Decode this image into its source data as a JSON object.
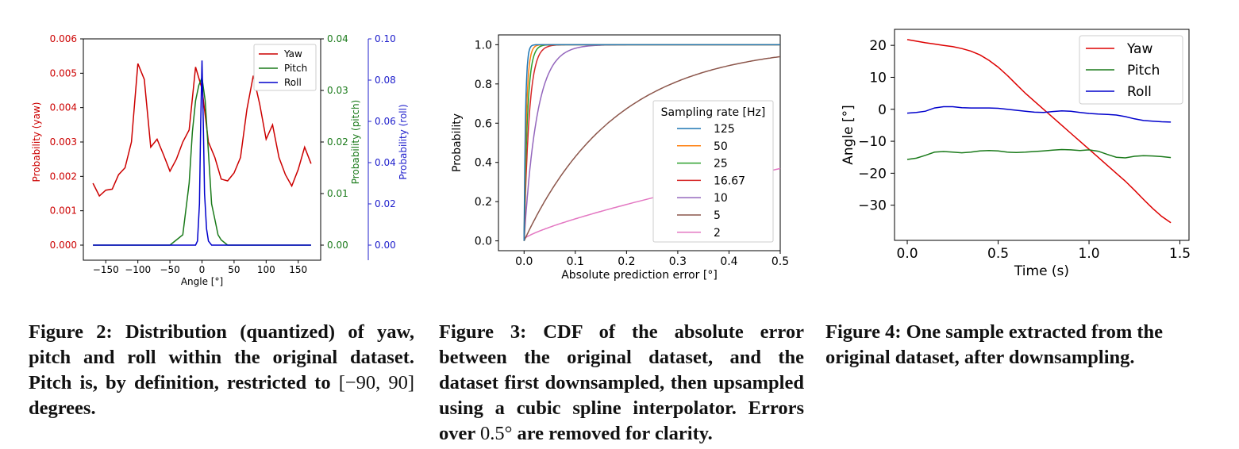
{
  "chart_data": [
    {
      "type": "line",
      "id": "fig2",
      "xlabel": "Angle [°]",
      "xlim": [
        -185,
        185
      ],
      "xticks": [
        -150,
        -100,
        -50,
        0,
        50,
        100,
        150
      ],
      "x": [
        -170,
        -160,
        -150,
        -140,
        -130,
        -120,
        -110,
        -100,
        -90,
        -80,
        -70,
        -60,
        -50,
        -40,
        -30,
        -20,
        -10,
        0,
        10,
        20,
        30,
        40,
        50,
        60,
        70,
        80,
        90,
        100,
        110,
        120,
        130,
        140,
        150,
        160,
        170
      ],
      "series": [
        {
          "name": "Yaw",
          "color": "#cc0000",
          "axis": "yaw",
          "values": [
            0.0018,
            0.00143,
            0.0016,
            0.00163,
            0.00205,
            0.00225,
            0.003,
            0.00528,
            0.00482,
            0.00285,
            0.00308,
            0.00263,
            0.00215,
            0.0025,
            0.003,
            0.00335,
            0.00518,
            0.00455,
            0.003,
            0.00255,
            0.00192,
            0.00187,
            0.0021,
            0.00255,
            0.00395,
            0.00493,
            0.0041,
            0.00308,
            0.0035,
            0.00255,
            0.00205,
            0.00172,
            0.0022,
            0.00285,
            0.00237
          ]
        },
        {
          "name": "Pitch",
          "color": "#1a7a1a",
          "axis": "pitch",
          "x": [
            -170,
            -60,
            -50,
            -40,
            -30,
            -20,
            -15,
            -10,
            -5,
            0,
            5,
            10,
            15,
            20,
            25,
            30,
            40,
            50,
            60,
            170
          ],
          "values": [
            0,
            0,
            0,
            0.001,
            0.002,
            0.012,
            0.022,
            0.028,
            0.031,
            0.0325,
            0.028,
            0.018,
            0.008,
            0.005,
            0.002,
            0.001,
            0,
            0,
            0,
            0
          ]
        },
        {
          "name": "Roll",
          "color": "#0000cc",
          "axis": "roll",
          "x": [
            -170,
            -10,
            -7,
            -4,
            -2,
            0,
            2,
            4,
            7,
            10,
            15,
            170
          ],
          "values": [
            0,
            0,
            0.002,
            0.02,
            0.06,
            0.0895,
            0.06,
            0.025,
            0.008,
            0.002,
            0,
            0
          ]
        }
      ],
      "axes": [
        {
          "key": "yaw",
          "label": "Probability (yaw)",
          "color": "#cc0000",
          "ylim": [
            0,
            0.006
          ],
          "ticks": [
            "0.000",
            "0.001",
            "0.002",
            "0.003",
            "0.004",
            "0.005",
            "0.006"
          ]
        },
        {
          "key": "pitch",
          "label": "Probability (pitch)",
          "color": "#1a7a1a",
          "ylim": [
            0,
            0.04
          ],
          "ticks": [
            "0.00",
            "0.01",
            "0.02",
            "0.03",
            "0.04"
          ]
        },
        {
          "key": "roll",
          "label": "Probability (roll)",
          "color": "#2020cc",
          "ylim": [
            0,
            0.1
          ],
          "ticks": [
            "0.00",
            "0.02",
            "0.04",
            "0.06",
            "0.08",
            "0.10"
          ]
        }
      ],
      "legend": [
        "Yaw",
        "Pitch",
        "Roll"
      ],
      "legend_position": "top-right"
    },
    {
      "type": "line",
      "id": "fig3",
      "xlabel": "Absolute prediction error [°]",
      "ylabel": "Probability",
      "xlim": [
        -0.05,
        0.5
      ],
      "ylim": [
        -0.05,
        1.05
      ],
      "xticks": [
        "0.0",
        "0.1",
        "0.2",
        "0.3",
        "0.4",
        "0.5"
      ],
      "yticks": [
        "0.0",
        "0.2",
        "0.4",
        "0.6",
        "0.8",
        "1.0"
      ],
      "legend_title": "Sampling rate [Hz]",
      "legend_position": "center-right",
      "series": [
        {
          "name": "125",
          "color": "#1f77b4",
          "model": "exp",
          "k": 350
        },
        {
          "name": "50",
          "color": "#ff7f0e",
          "model": "exp",
          "k": 220
        },
        {
          "name": "25",
          "color": "#2ca02c",
          "model": "exp",
          "k": 150
        },
        {
          "name": "16.67",
          "color": "#d62728",
          "model": "exp",
          "k": 100
        },
        {
          "name": "10",
          "color": "#9467bd",
          "model": "exp",
          "k": 40
        },
        {
          "name": "5",
          "color": "#8c564b",
          "model": "exp",
          "k": 5.6
        },
        {
          "name": "2",
          "color": "#e377c2",
          "model": "sqrtish",
          "k": 0.37
        }
      ]
    },
    {
      "type": "line",
      "id": "fig4",
      "xlabel": "Time (s)",
      "ylabel": "Angle [°]",
      "xlim": [
        -0.07,
        1.55
      ],
      "ylim": [
        -41,
        25
      ],
      "xticks": [
        "0.0",
        "0.5",
        "1.0",
        "1.5"
      ],
      "yticks": [
        "20",
        "10",
        "0",
        "−10",
        "−20",
        "−30"
      ],
      "ytick_values": [
        20,
        10,
        0,
        -10,
        -20,
        -30
      ],
      "xtick_values": [
        0,
        0.5,
        1.0,
        1.5
      ],
      "legend": [
        "Yaw",
        "Pitch",
        "Roll"
      ],
      "legend_position": "top-right",
      "x": [
        0,
        0.05,
        0.1,
        0.15,
        0.2,
        0.25,
        0.3,
        0.35,
        0.4,
        0.45,
        0.5,
        0.55,
        0.6,
        0.65,
        0.7,
        0.75,
        0.8,
        0.85,
        0.9,
        0.95,
        1.0,
        1.05,
        1.1,
        1.15,
        1.2,
        1.25,
        1.3,
        1.35,
        1.4,
        1.45
      ],
      "series": [
        {
          "name": "Yaw",
          "color": "#dd0000",
          "values": [
            21.8,
            21.3,
            20.8,
            20.4,
            20.0,
            19.6,
            19.0,
            18.2,
            17.0,
            15.3,
            13.2,
            10.6,
            7.8,
            5.0,
            2.5,
            0,
            -2.5,
            -5.0,
            -7.5,
            -10.0,
            -12.5,
            -15.0,
            -17.5,
            -20.0,
            -22.5,
            -25.3,
            -28.2,
            -31.0,
            -33.5,
            -35.5
          ]
        },
        {
          "name": "Pitch",
          "color": "#1a7a1a",
          "values": [
            -15.7,
            -15.3,
            -14.4,
            -13.4,
            -13.2,
            -13.4,
            -13.6,
            -13.4,
            -13.0,
            -12.9,
            -13.0,
            -13.4,
            -13.5,
            -13.4,
            -13.2,
            -13.0,
            -12.8,
            -12.6,
            -12.7,
            -12.9,
            -12.7,
            -13.1,
            -14.1,
            -15.0,
            -15.2,
            -14.7,
            -14.5,
            -14.6,
            -14.8,
            -15.1
          ]
        },
        {
          "name": "Roll",
          "color": "#0000cc",
          "values": [
            -1.2,
            -1.0,
            -0.6,
            0.4,
            0.8,
            0.8,
            0.5,
            0.4,
            0.4,
            0.4,
            0.3,
            0.0,
            -0.3,
            -0.6,
            -0.9,
            -1.0,
            -0.7,
            -0.5,
            -0.6,
            -1.0,
            -1.3,
            -1.5,
            -1.6,
            -1.8,
            -2.3,
            -3.0,
            -3.5,
            -3.7,
            -3.9,
            -4.0
          ]
        }
      ]
    }
  ],
  "captions": {
    "fig2": {
      "label": "Figure 2:",
      "text": "Distribution (quantized) of yaw, pitch and roll within the original dataset. Pitch is, by definition, restricted to",
      "math": "[−90, 90]",
      "tail": "degrees."
    },
    "fig3": {
      "label": "Figure 3:",
      "text": "CDF of the absolute error between the original dataset, and the dataset first downsampled, then upsampled using a cubic spline interpolator. Errors over",
      "math": "0.5°",
      "tail": "are removed for clarity."
    },
    "fig4": {
      "label": "Figure 4:",
      "text": "One sample extracted from the original dataset, after downsampling."
    }
  }
}
